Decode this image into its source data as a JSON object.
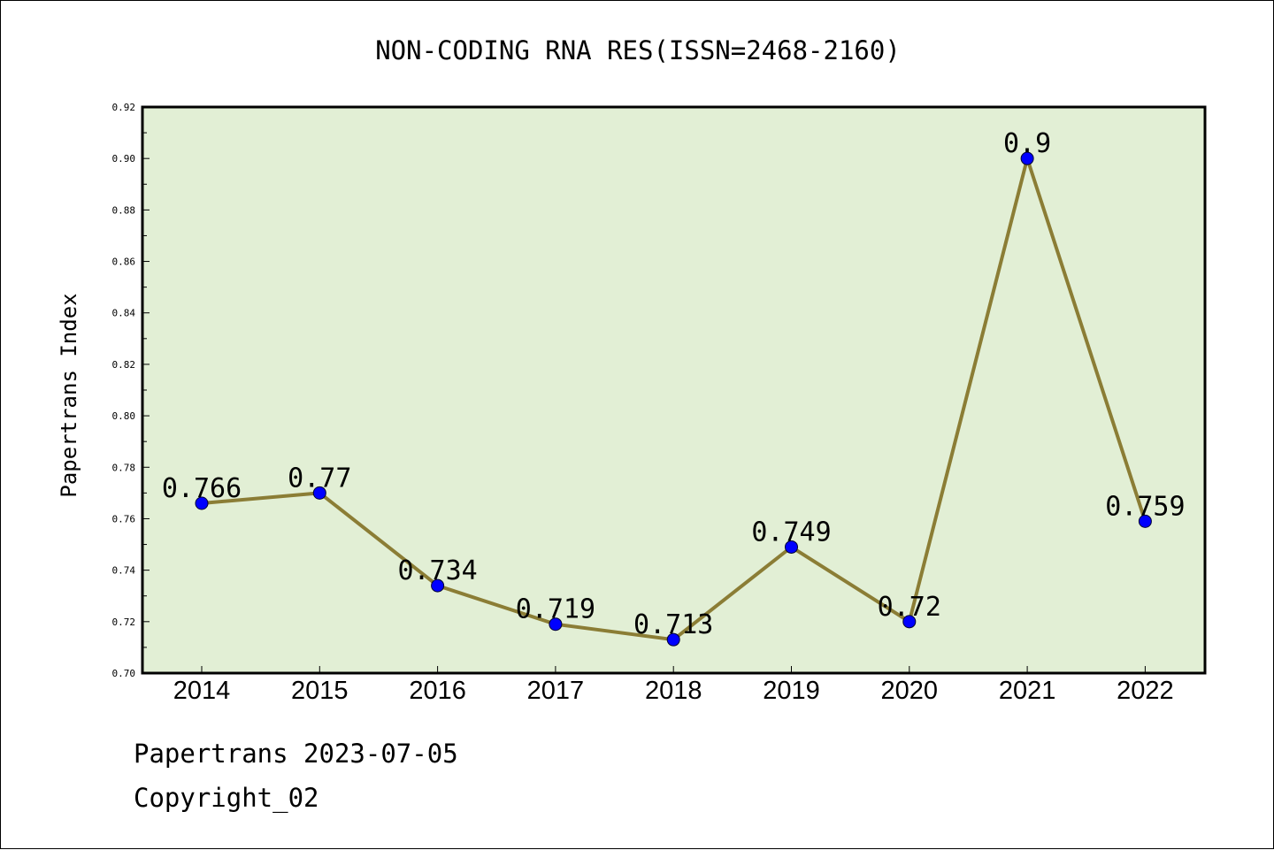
{
  "chart_data": {
    "type": "line",
    "title": "NON-CODING RNA RES(ISSN=2468-2160)",
    "xlabel": "",
    "ylabel": "Papertrans Index",
    "categories": [
      "2014",
      "2015",
      "2016",
      "2017",
      "2018",
      "2019",
      "2020",
      "2021",
      "2022"
    ],
    "series": [
      {
        "values": [
          0.766,
          0.77,
          0.734,
          0.719,
          0.713,
          0.749,
          0.72,
          0.9,
          0.759
        ],
        "labels": [
          "0.766",
          "0.77",
          "0.734",
          "0.719",
          "0.713",
          "0.749",
          "0.72",
          "0.9",
          "0.759"
        ]
      }
    ],
    "ylim": [
      0.7,
      0.92
    ],
    "yticks": [
      "0.70",
      "0.72",
      "0.74",
      "0.76",
      "0.78",
      "0.80",
      "0.82",
      "0.84",
      "0.86",
      "0.88",
      "0.90",
      "0.92"
    ],
    "grid": false,
    "legend": "none",
    "colors": {
      "line": "#8b7d35",
      "marker": "#0000ff",
      "plot_background": "#e2efd5",
      "axis": "#000000"
    }
  },
  "footer": {
    "date_line": "Papertrans 2023-07-05",
    "copyright": "Copyright_02"
  }
}
